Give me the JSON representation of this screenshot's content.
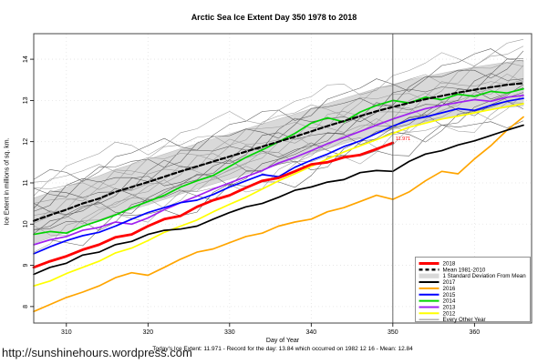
{
  "page": {
    "footer_url": "http://sunshinehours.wordpress.com",
    "caption": "Today's Ice Extent: 11.971  - Record for the day: 13.84 which occurred on 1982 12 16  - Mean: 12.84"
  },
  "chart_data": {
    "type": "line",
    "title": "Arctic Sea Ice Extent Day 350 1978 to 2018",
    "xlabel": "Day of Year",
    "ylabel": "Ice Extent in millions of sq. km.",
    "xlim": [
      306,
      367
    ],
    "ylim": [
      7.6,
      14.62
    ],
    "xticks": [
      310,
      320,
      330,
      340,
      350,
      360
    ],
    "yticks": [
      8,
      9,
      10,
      11,
      12,
      13,
      14
    ],
    "grid": true,
    "vline_x": 350,
    "current_day": 350,
    "current_value": 11.971,
    "current_label": "11.971",
    "record_value": 13.84,
    "record_date": "1982 12 16",
    "mean_at_day": 12.84,
    "days": [
      306,
      308,
      310,
      312,
      314,
      316,
      318,
      320,
      322,
      324,
      326,
      328,
      330,
      332,
      334,
      336,
      338,
      340,
      342,
      344,
      346,
      348,
      350,
      352,
      354,
      356,
      358,
      360,
      362,
      364,
      366
    ],
    "series": [
      {
        "name": "2012",
        "color": "#ffff00",
        "width": 1.7,
        "values": [
          8.5,
          8.62,
          8.8,
          8.95,
          9.1,
          9.3,
          9.42,
          9.6,
          9.8,
          9.95,
          10.1,
          10.3,
          10.48,
          10.65,
          10.85,
          11.05,
          11.22,
          11.4,
          11.58,
          11.75,
          11.9,
          12.05,
          12.2,
          12.35,
          12.45,
          12.55,
          12.62,
          12.7,
          12.78,
          12.85,
          12.92
        ]
      },
      {
        "name": "2016",
        "color": "#ffa500",
        "width": 1.7,
        "values": [
          7.88,
          8.05,
          8.22,
          8.35,
          8.5,
          8.7,
          8.82,
          8.76,
          8.95,
          9.15,
          9.32,
          9.4,
          9.55,
          9.7,
          9.78,
          9.95,
          10.05,
          10.12,
          10.3,
          10.4,
          10.55,
          10.7,
          10.6,
          10.78,
          11.05,
          11.28,
          11.22,
          11.58,
          11.9,
          12.28,
          12.6
        ]
      },
      {
        "name": "2017",
        "color": "#000000",
        "width": 1.7,
        "values": [
          8.78,
          8.95,
          9.05,
          9.25,
          9.32,
          9.5,
          9.58,
          9.75,
          9.85,
          9.88,
          9.95,
          10.12,
          10.28,
          10.42,
          10.5,
          10.65,
          10.82,
          10.9,
          11.02,
          11.08,
          11.25,
          11.3,
          11.28,
          11.52,
          11.7,
          11.78,
          11.92,
          12.02,
          12.15,
          12.28,
          12.4
        ]
      },
      {
        "name": "2013",
        "color": "#a020f0",
        "width": 1.7,
        "values": [
          9.5,
          9.62,
          9.7,
          9.85,
          9.92,
          10.05,
          10.0,
          10.15,
          10.35,
          10.52,
          10.68,
          10.85,
          11.0,
          11.15,
          11.3,
          11.48,
          11.62,
          11.78,
          11.95,
          12.1,
          12.25,
          12.4,
          12.55,
          12.68,
          12.8,
          12.88,
          12.95,
          13.02,
          12.98,
          13.08,
          13.12
        ]
      },
      {
        "name": "2015",
        "color": "#0000ff",
        "width": 1.7,
        "values": [
          9.28,
          9.45,
          9.6,
          9.72,
          9.8,
          9.95,
          10.12,
          10.28,
          10.4,
          10.52,
          10.58,
          10.72,
          10.9,
          11.05,
          11.2,
          11.15,
          11.38,
          11.55,
          11.7,
          11.88,
          12.02,
          12.2,
          12.38,
          12.52,
          12.6,
          12.7,
          12.8,
          12.76,
          12.88,
          12.98,
          13.05
        ]
      },
      {
        "name": "2014",
        "color": "#00d400",
        "width": 1.7,
        "values": [
          9.75,
          9.82,
          9.78,
          9.95,
          10.08,
          10.22,
          10.4,
          10.55,
          10.7,
          10.9,
          11.05,
          11.18,
          11.4,
          11.62,
          11.8,
          12.0,
          12.2,
          12.45,
          12.58,
          12.48,
          12.72,
          12.88,
          13.0,
          12.94,
          13.08,
          13.02,
          13.15,
          13.1,
          13.22,
          13.18,
          13.28
        ]
      },
      {
        "name": "Mean 1981-2010",
        "color": "#000000",
        "width": 2.2,
        "dash": "5,3",
        "values": [
          10.08,
          10.22,
          10.35,
          10.5,
          10.62,
          10.78,
          10.9,
          11.02,
          11.15,
          11.28,
          11.4,
          11.52,
          11.64,
          11.76,
          11.88,
          12.0,
          12.12,
          12.25,
          12.38,
          12.5,
          12.62,
          12.74,
          12.84,
          12.94,
          13.03,
          13.11,
          13.19,
          13.26,
          13.32,
          13.38,
          13.42
        ]
      },
      {
        "name": "2018",
        "color": "#ff0000",
        "width": 2.8,
        "values": [
          8.95,
          9.1,
          9.22,
          9.38,
          9.5,
          9.68,
          9.75,
          9.95,
          10.12,
          10.2,
          10.42,
          10.58,
          10.7,
          10.88,
          11.05,
          11.12,
          11.28,
          11.45,
          11.5,
          11.62,
          11.68,
          11.82,
          11.971
        ]
      }
    ],
    "band": {
      "name": "1 Standard Deviation From Mean",
      "color": "#d9d9d9",
      "half_width": 0.55,
      "basis": "Mean 1981-2010"
    },
    "background_years": {
      "name": "Every Other Year",
      "colors": [
        "#9a9a9a",
        "#5a5a5a"
      ],
      "lines": [
        {
          "start": 9.45,
          "end": 12.7,
          "seed": 1
        },
        {
          "start": 9.6,
          "end": 12.85,
          "seed": 2
        },
        {
          "start": 9.7,
          "end": 12.95,
          "seed": 3
        },
        {
          "start": 9.8,
          "end": 13.05,
          "seed": 4
        },
        {
          "start": 9.9,
          "end": 13.15,
          "seed": 5
        },
        {
          "start": 9.95,
          "end": 13.3,
          "seed": 6
        },
        {
          "start": 10.05,
          "end": 13.2,
          "seed": 7
        },
        {
          "start": 10.1,
          "end": 13.45,
          "seed": 8
        },
        {
          "start": 10.2,
          "end": 13.4,
          "seed": 9
        },
        {
          "start": 10.3,
          "end": 13.55,
          "seed": 10
        },
        {
          "start": 10.4,
          "end": 13.6,
          "seed": 11
        },
        {
          "start": 10.5,
          "end": 13.7,
          "seed": 12
        },
        {
          "start": 10.55,
          "end": 13.85,
          "seed": 13
        },
        {
          "start": 10.65,
          "end": 13.95,
          "seed": 14
        },
        {
          "start": 10.75,
          "end": 14.05,
          "seed": 15
        },
        {
          "start": 10.85,
          "end": 14.15,
          "seed": 16
        },
        {
          "start": 11.0,
          "end": 14.3,
          "seed": 17
        },
        {
          "start": 11.2,
          "end": 14.45,
          "seed": 18
        }
      ]
    },
    "legend": {
      "position": "bottom-right",
      "items": [
        {
          "label": "2018",
          "color": "#ff0000",
          "type": "line",
          "width": 3
        },
        {
          "label": "Mean 1981-2010",
          "color": "#000000",
          "type": "dashed",
          "width": 2.4
        },
        {
          "label": "1 Standard Deviation From Mean",
          "color": "#d9d9d9",
          "type": "band"
        },
        {
          "label": "2017",
          "color": "#000000",
          "type": "line",
          "width": 2
        },
        {
          "label": "2016",
          "color": "#ffa500",
          "type": "line",
          "width": 2
        },
        {
          "label": "2015",
          "color": "#0000ff",
          "type": "line",
          "width": 2
        },
        {
          "label": "2014",
          "color": "#00d400",
          "type": "line",
          "width": 2
        },
        {
          "label": "2013",
          "color": "#a020f0",
          "type": "line",
          "width": 2
        },
        {
          "label": "2012",
          "color": "#ffff00",
          "type": "line",
          "width": 2
        },
        {
          "label": "Every Other Year",
          "color": "#888888",
          "type": "line",
          "width": 1
        }
      ]
    }
  }
}
